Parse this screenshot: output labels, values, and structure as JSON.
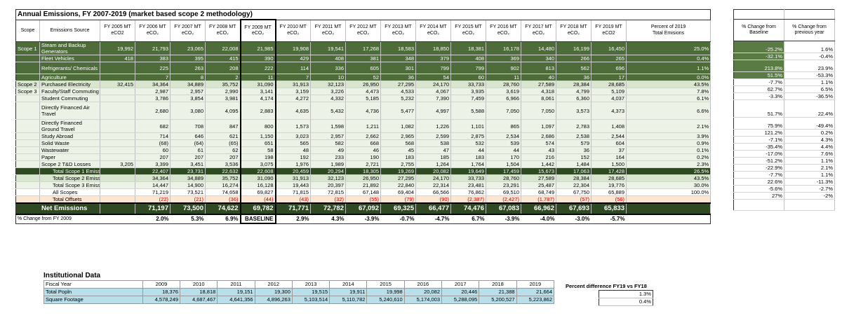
{
  "title": "Annual Emissions, FY 2007-2019 (market based scope 2 methodology)",
  "headers": {
    "scope": "Scope",
    "source": "Emissions Source",
    "years": [
      {
        "l1": "FY 2005  MT",
        "l2": "eCO2"
      },
      {
        "l1": "FY 2006  MT",
        "l2": "eCO₂"
      },
      {
        "l1": "FY 2007  MT",
        "l2": "eCO₂"
      },
      {
        "l1": "FY 2008  MT",
        "l2": "eCO₂"
      },
      {
        "l1": "FY 2009  MT",
        "l2": "eCO₂"
      },
      {
        "l1": "FY 2010  MT",
        "l2": "eCO₂"
      },
      {
        "l1": "FY 2011  MT",
        "l2": "eCO₂"
      },
      {
        "l1": "FY 2012  MT",
        "l2": "eCO₂"
      },
      {
        "l1": "FY 2013  MT",
        "l2": "eCO₂"
      },
      {
        "l1": "FY 2014  MT",
        "l2": "eCO₂"
      },
      {
        "l1": "FY 2015  MT",
        "l2": "eCO₂"
      },
      {
        "l1": "FY 2016  MT",
        "l2": "eCO₂"
      },
      {
        "l1": "FY 2017  MT",
        "l2": "eCO₂"
      },
      {
        "l1": "FY 2018  MT",
        "l2": "eCO₂"
      },
      {
        "l1": "FY 2019  MT",
        "l2": "eCO2"
      }
    ],
    "percent": {
      "l1": "Percent of 2019",
      "l2": "Total Emisions"
    },
    "change_baseline": {
      "l1": "% Change from",
      "l2": "Baseline"
    },
    "change_prev": {
      "l1": "% Change from",
      "l2": "previous year"
    }
  },
  "rows": [
    {
      "cls": "g",
      "tall": true,
      "scope": "Scope 1",
      "source": "Steam and Backup Generators",
      "values": [
        "19,992",
        "21,793",
        "23,065",
        "22,008",
        "21,985",
        "19,908",
        "19,541",
        "17,268",
        "18,583",
        "18,850",
        "18,381",
        "16,178",
        "14,480",
        "16,199",
        "16,450"
      ],
      "percent": "25.0%",
      "chg_base": "-25.2%",
      "chg_prev": "1.6%"
    },
    {
      "cls": "g",
      "scope": "",
      "source": "Fleet Vehicles",
      "values": [
        "418",
        "383",
        "395",
        "415",
        "390",
        "429",
        "408",
        "381",
        "348",
        "379",
        "408",
        "369",
        "340",
        "266",
        "265"
      ],
      "percent": "0.4%",
      "chg_base": "-32.1%",
      "chg_prev": "-0.4%"
    },
    {
      "cls": "g",
      "tall": true,
      "scope": "",
      "source": "Refrigerants/ Chemicals",
      "values": [
        "",
        "225",
        "263",
        "208",
        "222",
        "114",
        "336",
        "605",
        "301",
        "799",
        "799",
        "902",
        "813",
        "562",
        "696"
      ],
      "percent": "1.1%",
      "chg_base": "213.8%",
      "chg_prev": "23.9%"
    },
    {
      "cls": "g",
      "scope": "",
      "source": "Agriculture",
      "values": [
        "",
        "7",
        "8",
        "2",
        "11",
        "7",
        "10",
        "52",
        "36",
        "54",
        "60",
        "11",
        "40",
        "36",
        "17"
      ],
      "percent": "0.0%",
      "chg_base": "51.5%",
      "chg_prev": "-53.3%"
    },
    {
      "cls": "gm",
      "sepTop": true,
      "scope": "Scope 2",
      "source": "Purchased Electricity",
      "values": [
        "32,415",
        "34,364",
        "34,889",
        "35,752",
        "31,090",
        "31,913",
        "32,123",
        "26,950",
        "27,295",
        "24,170",
        "33,733",
        "28,760",
        "27,589",
        "28,384",
        "28,685"
      ],
      "percent": "43.5%",
      "chg_base": "-7.7%",
      "chg_prev": "1.1%"
    },
    {
      "cls": "gl",
      "sepTop": true,
      "scope": "Scope 3",
      "source": "Faculty/Staff Commuting",
      "values": [
        "",
        "2,987",
        "2,957",
        "2,990",
        "3,141",
        "3,159",
        "3,226",
        "4,473",
        "4,533",
        "4,067",
        "3,935",
        "3,619",
        "4,318",
        "4,799",
        "5,109"
      ],
      "percent": "7.8%",
      "chg_base": "62.7%",
      "chg_prev": "6.5%"
    },
    {
      "cls": "gl",
      "scope": "",
      "source": "Student Commuting",
      "values": [
        "",
        "3,786",
        "3,854",
        "3,981",
        "4,174",
        "4,272",
        "4,332",
        "5,185",
        "5,232",
        "7,390",
        "7,459",
        "6,966",
        "8,061",
        "6,360",
        "4,037"
      ],
      "percent": "6.1%",
      "chg_base": "-3.3%",
      "chg_prev": "-36.5%"
    },
    {
      "cls": "gl",
      "xtall": true,
      "scope": "",
      "source": "Directly Financed Air Travel",
      "values": [
        "",
        "2,680",
        "3,080",
        "4,095",
        "2,883",
        "4,635",
        "5,432",
        "4,736",
        "5,477",
        "4,997",
        "5,588",
        "7,050",
        "7,050",
        "3,573",
        "4,373"
      ],
      "percent": "6.6%",
      "chg_base": "51.7%",
      "chg_prev": "22.4%"
    },
    {
      "cls": "gl",
      "tall": true,
      "scope": "",
      "source": "Directly Financed Ground Travel",
      "values": [
        "",
        "682",
        "708",
        "847",
        "800",
        "1,573",
        "1,598",
        "1,211",
        "1,082",
        "1,226",
        "1,101",
        "865",
        "1,097",
        "2,783",
        "1,408"
      ],
      "percent": "2.1%",
      "chg_base": "75.9%",
      "chg_prev": "-49.4%"
    },
    {
      "cls": "gl",
      "scope": "",
      "source": "Study Abroad",
      "values": [
        "",
        "714",
        "646",
        "621",
        "1,150",
        "3,023",
        "2,957",
        "2,662",
        "2,965",
        "2,599",
        "2,875",
        "2,534",
        "2,686",
        "2,538",
        "2,544"
      ],
      "percent": "3.9%",
      "chg_base": "121.2%",
      "chg_prev": "0.2%"
    },
    {
      "cls": "gl",
      "scope": "",
      "source": "Solid Waste",
      "values": [
        "",
        "(68)",
        "(64)",
        "(65)",
        "651",
        "565",
        "582",
        "668",
        "568",
        "538",
        "532",
        "539",
        "574",
        "579",
        "604"
      ],
      "percent": "0.9%",
      "chg_base": "-7.1%",
      "chg_prev": "4.3%"
    },
    {
      "cls": "gl",
      "scope": "",
      "source": "Wastewater",
      "values": [
        "",
        "60",
        "61",
        "62",
        "58",
        "48",
        "49",
        "46",
        "45",
        "47",
        "44",
        "44",
        "43",
        "36",
        "37"
      ],
      "percent": "0.1%",
      "chg_base": "-35.4%",
      "chg_prev": "4.4%"
    },
    {
      "cls": "gl",
      "scope": "",
      "source": "Paper",
      "values": [
        "",
        "207",
        "207",
        "207",
        "198",
        "192",
        "233",
        "190",
        "183",
        "185",
        "183",
        "170",
        "216",
        "152",
        "164"
      ],
      "percent": "0.2%",
      "chg_base": "-17.0%",
      "chg_prev": "7.6%"
    },
    {
      "cls": "gl",
      "scope": "",
      "source": "Scope 2 T&D Losses",
      "values": [
        "3,205",
        "3,399",
        "3,451",
        "3,536",
        "3,075",
        "1,976",
        "1,989",
        "2,721",
        "2,755",
        "1,264",
        "1,764",
        "1,504",
        "1,442",
        "1,484",
        "1,500"
      ],
      "percent": "2.3%",
      "chg_base": "-51.2%",
      "chg_prev": "1.1%"
    },
    {
      "cls": "gd",
      "sepTop": true,
      "scope": "",
      "source": "Total Scope 1 Emissions",
      "values": [
        "",
        "22,407",
        "23,731",
        "22,632",
        "22,608",
        "20,459",
        "20,294",
        "18,305",
        "19,269",
        "20,082",
        "19,649",
        "17,459",
        "15,673",
        "17,063",
        "17,428"
      ],
      "percent": "26.5%",
      "chg_base": "-22.9%",
      "chg_prev": "2.1%"
    },
    {
      "cls": "gm",
      "scope": "",
      "source": "Total Scope 2 Emissions",
      "values": [
        "",
        "34,364",
        "34,889",
        "35,752",
        "31,090",
        "31,913",
        "32,123",
        "26,950",
        "27,295",
        "24,170",
        "33,733",
        "28,760",
        "27,589",
        "28,384",
        "28,685"
      ],
      "percent": "43.5%",
      "chg_base": "-7.7%",
      "chg_prev": "1.1%"
    },
    {
      "cls": "gl",
      "scope": "",
      "source": "Total Scope 3 Emissions",
      "values": [
        "",
        "14,447",
        "14,900",
        "16,274",
        "16,128",
        "19,443",
        "20,397",
        "21,892",
        "22,840",
        "22,314",
        "23,481",
        "23,291",
        "25,487",
        "22,304",
        "19,776"
      ],
      "percent": "30.0%",
      "chg_base": "22.6%",
      "chg_prev": "-11.3%"
    },
    {
      "cls": "",
      "scope": "",
      "source": "All Scopes",
      "values": [
        "",
        "71,219",
        "73,521",
        "74,658",
        "69,827",
        "71,815",
        "72,815",
        "67,148",
        "69,404",
        "66,566",
        "76,862",
        "69,510",
        "68,749",
        "67,750",
        "65,889"
      ],
      "percent": "100.0%",
      "chg_base": "-5.6%",
      "chg_prev": "-2.7%"
    },
    {
      "cls": "yl",
      "red": true,
      "scope": "",
      "source": "Total Offsets",
      "values": [
        "",
        "(22)",
        "(21)",
        "(36)",
        "(44)",
        "(43)",
        "(32)",
        "(55)",
        "(79)",
        "(90)",
        "(2,387)",
        "(2,427)",
        "(1,787)",
        "(57)",
        "(56)"
      ],
      "percent": "",
      "chg_base": "27%",
      "chg_prev": "-2%"
    }
  ],
  "net": {
    "label": "Net Emissions",
    "values": [
      "",
      "71,197",
      "73,500",
      "74,622",
      "69,782",
      "71,771",
      "72,782",
      "67,092",
      "69,325",
      "66,477",
      "74,476",
      "67,083",
      "66,962",
      "67,693",
      "65,833"
    ]
  },
  "pct_change": {
    "label": "% Change from FY 2009",
    "values": [
      "",
      "2.0%",
      "5.3%",
      "6.9%",
      "BASELINE",
      "2.9%",
      "4.3%",
      "-3.9%",
      "-0.7%",
      "-4.7%",
      "6.7%",
      "-3.9%",
      "-4.0%",
      "-3.0%",
      "-5.7%"
    ]
  },
  "institutional": {
    "title": "Institutional Data",
    "fy_label": "Fiscal Year",
    "years": [
      "2009",
      "2010",
      "2011",
      "2012",
      "2013",
      "2014",
      "2015",
      "2016",
      "2017",
      "2018",
      "2019"
    ],
    "rows": [
      {
        "label": "Total Popln",
        "values": [
          "18,376",
          "18,818",
          "19,151",
          "19,300",
          "19,515",
          "19,911",
          "19,998",
          "20,082",
          "20,446",
          "21,388",
          "21,664"
        ]
      },
      {
        "label": "Square Footage",
        "values": [
          "4,578,249",
          "4,687,467",
          "4,641,356",
          "4,896,263",
          "5,103,514",
          "5,110,782",
          "5,240,610",
          "5,174,003",
          "5,288,095",
          "5,200,527",
          "5,223,862"
        ]
      }
    ],
    "pct_diff_title": "Percent difference FY19 vs FY18",
    "pct_diff": [
      "1.3%",
      "0.4%"
    ]
  }
}
